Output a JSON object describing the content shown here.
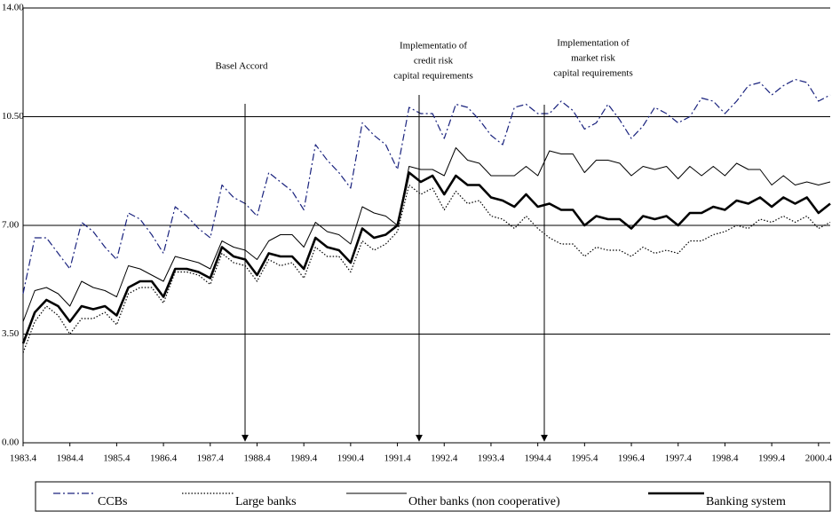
{
  "chart_data": {
    "type": "line",
    "categories": [
      "1983.4",
      null,
      null,
      null,
      "1984.4",
      null,
      null,
      null,
      "1985.4",
      null,
      null,
      null,
      "1986.4",
      null,
      null,
      null,
      "1987.4",
      null,
      null,
      null,
      "1988.4",
      null,
      null,
      null,
      "1989.4",
      null,
      null,
      null,
      "1990.4",
      null,
      null,
      null,
      "1991.4",
      null,
      null,
      null,
      "1992.4",
      null,
      null,
      null,
      "1993.4",
      null,
      null,
      null,
      "1994.4",
      null,
      null,
      null,
      "1995.4",
      null,
      null,
      null,
      "1996.4",
      null,
      null,
      null,
      "1997.4",
      null,
      null,
      null,
      "1998.4",
      null,
      null,
      null,
      "1999.4",
      null,
      null,
      null,
      "2000.4",
      null
    ],
    "ylim": [
      0,
      14
    ],
    "yticks": [
      {
        "value": 0,
        "label": "0.00"
      },
      {
        "value": 3.5,
        "label": "3.50"
      },
      {
        "value": 7,
        "label": "7.00"
      },
      {
        "value": 10.5,
        "label": "10.50"
      },
      {
        "value": 14,
        "label": "14.00"
      }
    ],
    "grid": true,
    "annotations": [
      {
        "text": [
          "Basel Accord"
        ]
      },
      {
        "text": [
          "Implementatio of",
          "credit risk",
          "capital requirements"
        ]
      },
      {
        "text": [
          "Implementation of",
          "market risk",
          "capital requirements"
        ]
      }
    ],
    "series": [
      {
        "name": "CCBs",
        "color": "#1a237e",
        "style": "dash-dot",
        "values": [
          4.8,
          6.6,
          6.6,
          6.1,
          5.6,
          7.1,
          6.8,
          6.3,
          5.9,
          7.4,
          7.2,
          6.7,
          6.1,
          7.6,
          7.3,
          6.9,
          6.6,
          8.3,
          7.9,
          7.7,
          7.3,
          8.7,
          8.4,
          8.1,
          7.5,
          9.6,
          9.1,
          8.7,
          8.2,
          10.3,
          9.9,
          9.6,
          8.8,
          10.8,
          10.6,
          10.6,
          9.8,
          10.9,
          10.8,
          10.4,
          9.9,
          9.6,
          10.8,
          10.9,
          10.6,
          10.6,
          11.0,
          10.7,
          10.1,
          10.3,
          10.9,
          10.4,
          9.8,
          10.2,
          10.8,
          10.6,
          10.3,
          10.5,
          11.1,
          11.0,
          10.6,
          11.0,
          11.5,
          11.6,
          11.2,
          11.5,
          11.7,
          11.6,
          11.0,
          11.2
        ]
      },
      {
        "name": "Large banks",
        "color": "#000000",
        "style": "dotted",
        "values": [
          2.9,
          3.9,
          4.4,
          4.1,
          3.5,
          4.0,
          4.0,
          4.2,
          3.8,
          4.8,
          5.0,
          5.0,
          4.5,
          5.5,
          5.5,
          5.4,
          5.1,
          6.1,
          5.8,
          5.7,
          5.2,
          5.9,
          5.7,
          5.8,
          5.3,
          6.3,
          6.0,
          6.0,
          5.5,
          6.5,
          6.2,
          6.4,
          6.8,
          8.3,
          8.0,
          8.2,
          7.5,
          8.1,
          7.7,
          7.8,
          7.3,
          7.2,
          6.9,
          7.3,
          6.9,
          6.6,
          6.4,
          6.4,
          6.0,
          6.3,
          6.2,
          6.2,
          6.0,
          6.3,
          6.1,
          6.2,
          6.1,
          6.5,
          6.5,
          6.7,
          6.8,
          7.0,
          6.9,
          7.2,
          7.1,
          7.3,
          7.1,
          7.3,
          6.9,
          7.1
        ]
      },
      {
        "name": "Other banks (non cooperative)",
        "color": "#000000",
        "style": "solid",
        "values": [
          3.9,
          4.9,
          5.0,
          4.8,
          4.4,
          5.2,
          5.0,
          4.9,
          4.7,
          5.7,
          5.6,
          5.4,
          5.2,
          6.0,
          5.9,
          5.8,
          5.6,
          6.5,
          6.3,
          6.2,
          5.9,
          6.5,
          6.7,
          6.7,
          6.3,
          7.1,
          6.8,
          6.7,
          6.4,
          7.6,
          7.4,
          7.3,
          7.0,
          8.9,
          8.8,
          8.8,
          8.6,
          9.5,
          9.1,
          9.0,
          8.6,
          8.6,
          8.6,
          8.9,
          8.6,
          9.4,
          9.3,
          9.3,
          8.7,
          9.1,
          9.1,
          9.0,
          8.6,
          8.9,
          8.8,
          8.9,
          8.5,
          8.9,
          8.6,
          8.9,
          8.6,
          9.0,
          8.8,
          8.8,
          8.3,
          8.6,
          8.3,
          8.4,
          8.3,
          8.4
        ]
      },
      {
        "name": "Banking system",
        "color": "#000000",
        "style": "bold",
        "values": [
          3.2,
          4.2,
          4.6,
          4.4,
          3.9,
          4.4,
          4.3,
          4.4,
          4.1,
          5.0,
          5.2,
          5.2,
          4.7,
          5.6,
          5.6,
          5.5,
          5.3,
          6.3,
          6.0,
          5.9,
          5.4,
          6.1,
          6.0,
          6.0,
          5.6,
          6.6,
          6.3,
          6.2,
          5.8,
          6.9,
          6.6,
          6.7,
          7.0,
          8.7,
          8.4,
          8.6,
          8.0,
          8.6,
          8.3,
          8.3,
          7.9,
          7.8,
          7.6,
          8.0,
          7.6,
          7.7,
          7.5,
          7.5,
          7.0,
          7.3,
          7.2,
          7.2,
          6.9,
          7.3,
          7.2,
          7.3,
          7.0,
          7.4,
          7.4,
          7.6,
          7.5,
          7.8,
          7.7,
          7.9,
          7.6,
          7.9,
          7.7,
          7.9,
          7.4,
          7.7
        ]
      }
    ]
  }
}
